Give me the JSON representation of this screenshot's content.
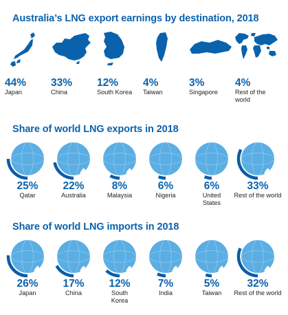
{
  "colors": {
    "brand": "#0a62ad",
    "ring": "#0a5ca8",
    "globe": "#5aaee3",
    "land": "#ffffff"
  },
  "sections": {
    "earnings": {
      "title": "Australia’s LNG export earnings by destination, 2018"
    },
    "exports": {
      "title": "Share of world LNG exports in 2018"
    },
    "imports": {
      "title": "Share of world LNG imports in 2018"
    }
  },
  "chart_data": [
    {
      "type": "pictogram",
      "title": "Australia’s LNG export earnings by destination, 2018",
      "categories": [
        "Japan",
        "China",
        "South Korea",
        "Taiwan",
        "Singapore",
        "Rest of the world"
      ],
      "values": [
        44,
        33,
        12,
        4,
        3,
        4
      ],
      "labels": [
        "44%",
        "33%",
        "12%",
        "4%",
        "3%",
        "4%"
      ],
      "icons": [
        "japan-map-icon",
        "china-map-icon",
        "south-korea-map-icon",
        "taiwan-map-icon",
        "singapore-map-icon",
        "world-map-icon"
      ]
    },
    {
      "type": "donut",
      "title": "Share of world LNG exports in 2018",
      "categories": [
        "Qatar",
        "Australia",
        "Malaysia",
        "Nigeria",
        "United States",
        "Rest of the world"
      ],
      "values": [
        25,
        22,
        8,
        6,
        6,
        33
      ],
      "labels": [
        "25%",
        "22%",
        "8%",
        "6%",
        "6%",
        "33%"
      ],
      "category_lines": [
        [
          "Qatar"
        ],
        [
          "Australia"
        ],
        [
          "Malaysia"
        ],
        [
          "Nigeria"
        ],
        [
          "United",
          "States"
        ],
        [
          "Rest of the world"
        ]
      ],
      "icons": [
        "globe-africa-icon",
        "globe-asia-icon",
        "globe-asia-icon",
        "globe-africa-icon",
        "globe-americas-icon",
        "globe-asia-icon"
      ]
    },
    {
      "type": "donut",
      "title": "Share of world LNG imports in 2018",
      "categories": [
        "Japan",
        "China",
        "South Korea",
        "India",
        "Taiwan",
        "Rest of the world"
      ],
      "values": [
        26,
        17,
        12,
        7,
        5,
        32
      ],
      "labels": [
        "26%",
        "17%",
        "12%",
        "7%",
        "5%",
        "32%"
      ],
      "category_lines": [
        [
          "Japan"
        ],
        [
          "China"
        ],
        [
          "South",
          "Korea"
        ],
        [
          "India"
        ],
        [
          "Taiwan"
        ],
        [
          "Rest of the world"
        ]
      ],
      "icons": [
        "globe-asia-icon",
        "globe-asia-icon",
        "globe-asia-icon",
        "globe-asia-icon",
        "globe-asia-icon",
        "globe-asia-icon"
      ]
    }
  ]
}
